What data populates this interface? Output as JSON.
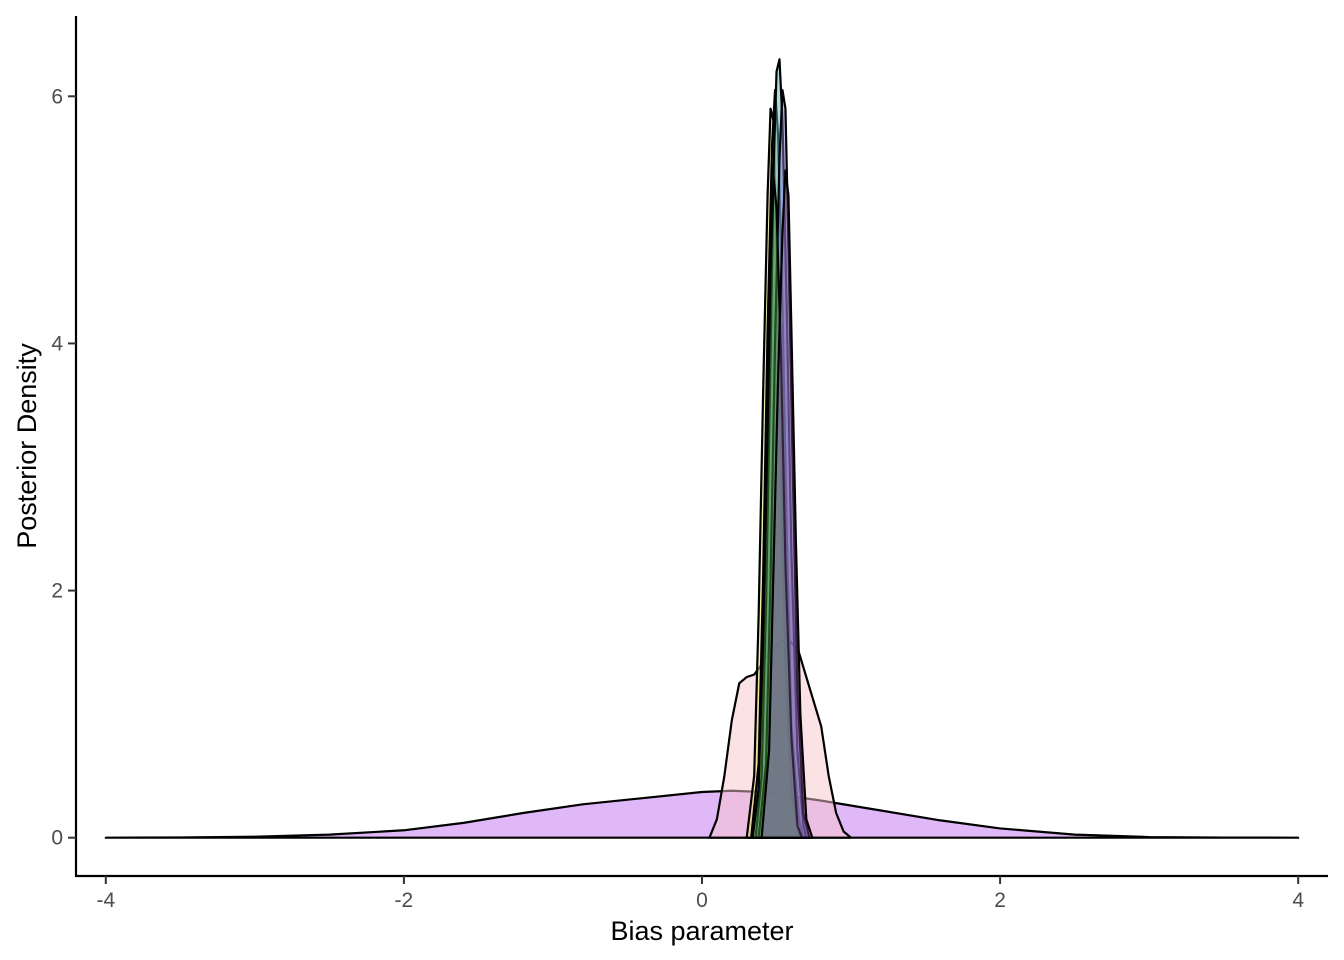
{
  "chart_data": {
    "type": "area",
    "xlabel": "Bias parameter",
    "ylabel": "Posterior Density",
    "xlim": [
      -4.2,
      4.2
    ],
    "ylim": [
      -0.31,
      6.65
    ],
    "x_ticks": [
      -4,
      -2,
      0,
      2,
      4
    ],
    "x_tick_labels": [
      "-4",
      "-2",
      "0",
      "2",
      "4"
    ],
    "y_ticks": [
      0,
      2,
      4,
      6
    ],
    "y_tick_labels": [
      "0",
      "2",
      "4",
      "6"
    ],
    "grid": false,
    "legend": "none",
    "series": [
      {
        "fill": "#c77cf0",
        "opacity": 0.55,
        "points": [
          [
            -4,
            0
          ],
          [
            -3.5,
            0.002
          ],
          [
            -3,
            0.008
          ],
          [
            -2.5,
            0.025
          ],
          [
            -2,
            0.06
          ],
          [
            -1.6,
            0.12
          ],
          [
            -1.2,
            0.2
          ],
          [
            -0.8,
            0.27
          ],
          [
            -0.4,
            0.32
          ],
          [
            0,
            0.37
          ],
          [
            0.2,
            0.38
          ],
          [
            0.4,
            0.37
          ],
          [
            0.8,
            0.3
          ],
          [
            1.2,
            0.22
          ],
          [
            1.6,
            0.14
          ],
          [
            2,
            0.075
          ],
          [
            2.5,
            0.025
          ],
          [
            3,
            0.005
          ],
          [
            3.5,
            0.001
          ],
          [
            4,
            0
          ]
        ]
      },
      {
        "fill": "#f8c6cb",
        "opacity": 0.5,
        "points": [
          [
            0.05,
            0
          ],
          [
            0.1,
            0.15
          ],
          [
            0.15,
            0.5
          ],
          [
            0.2,
            0.95
          ],
          [
            0.25,
            1.25
          ],
          [
            0.3,
            1.3
          ],
          [
            0.35,
            1.32
          ],
          [
            0.4,
            1.4
          ],
          [
            0.45,
            1.5
          ],
          [
            0.5,
            1.56
          ],
          [
            0.55,
            1.6
          ],
          [
            0.6,
            1.58
          ],
          [
            0.65,
            1.5
          ],
          [
            0.7,
            1.3
          ],
          [
            0.75,
            1.1
          ],
          [
            0.8,
            0.9
          ],
          [
            0.85,
            0.5
          ],
          [
            0.9,
            0.2
          ],
          [
            0.95,
            0.05
          ],
          [
            1.0,
            0
          ]
        ]
      },
      {
        "fill": "#e3e36b",
        "opacity": 0.55,
        "points": [
          [
            0.3,
            0
          ],
          [
            0.35,
            0.5
          ],
          [
            0.38,
            1.8
          ],
          [
            0.41,
            3.6
          ],
          [
            0.44,
            5.2
          ],
          [
            0.46,
            5.9
          ],
          [
            0.48,
            5.8
          ],
          [
            0.5,
            4.8
          ],
          [
            0.53,
            3
          ],
          [
            0.56,
            1.4
          ],
          [
            0.6,
            0.4
          ],
          [
            0.65,
            0
          ]
        ]
      },
      {
        "fill": "#9bd08a",
        "opacity": 0.55,
        "points": [
          [
            0.33,
            0
          ],
          [
            0.38,
            0.6
          ],
          [
            0.41,
            2.1
          ],
          [
            0.44,
            4.1
          ],
          [
            0.47,
            5.6
          ],
          [
            0.49,
            6.05
          ],
          [
            0.51,
            5.7
          ],
          [
            0.54,
            4.3
          ],
          [
            0.57,
            2.4
          ],
          [
            0.6,
            0.9
          ],
          [
            0.65,
            0.15
          ],
          [
            0.68,
            0
          ]
        ]
      },
      {
        "fill": "#5bb7c4",
        "opacity": 0.5,
        "points": [
          [
            0.36,
            0
          ],
          [
            0.4,
            0.5
          ],
          [
            0.43,
            1.9
          ],
          [
            0.46,
            3.9
          ],
          [
            0.48,
            5.4
          ],
          [
            0.5,
            6.2
          ],
          [
            0.52,
            6.3
          ],
          [
            0.54,
            5.8
          ],
          [
            0.57,
            4.2
          ],
          [
            0.6,
            2.3
          ],
          [
            0.64,
            0.7
          ],
          [
            0.68,
            0.1
          ],
          [
            0.7,
            0
          ]
        ]
      },
      {
        "fill": "#7e7ac8",
        "opacity": 0.5,
        "points": [
          [
            0.38,
            0
          ],
          [
            0.43,
            0.6
          ],
          [
            0.46,
            2.1
          ],
          [
            0.49,
            4
          ],
          [
            0.52,
            5.5
          ],
          [
            0.54,
            6.05
          ],
          [
            0.56,
            5.9
          ],
          [
            0.58,
            4.8
          ],
          [
            0.61,
            2.9
          ],
          [
            0.64,
            1.2
          ],
          [
            0.68,
            0.2
          ],
          [
            0.72,
            0
          ]
        ]
      },
      {
        "fill": "#3f8b3a",
        "opacity": 0.55,
        "points": [
          [
            0.34,
            0
          ],
          [
            0.38,
            0.4
          ],
          [
            0.41,
            1.6
          ],
          [
            0.44,
            3.3
          ],
          [
            0.46,
            4.6
          ],
          [
            0.48,
            5.35
          ],
          [
            0.5,
            5.1
          ],
          [
            0.53,
            3.9
          ],
          [
            0.56,
            2.2
          ],
          [
            0.6,
            0.8
          ],
          [
            0.64,
            0.1
          ],
          [
            0.67,
            0
          ]
        ]
      },
      {
        "fill": "#8a4fa0",
        "opacity": 0.4,
        "points": [
          [
            0.4,
            0
          ],
          [
            0.45,
            0.7
          ],
          [
            0.48,
            2.2
          ],
          [
            0.51,
            3.7
          ],
          [
            0.54,
            4.9
          ],
          [
            0.56,
            5.4
          ],
          [
            0.58,
            5.2
          ],
          [
            0.6,
            4.1
          ],
          [
            0.63,
            2.4
          ],
          [
            0.66,
            1
          ],
          [
            0.7,
            0.15
          ],
          [
            0.74,
            0
          ]
        ]
      }
    ]
  }
}
